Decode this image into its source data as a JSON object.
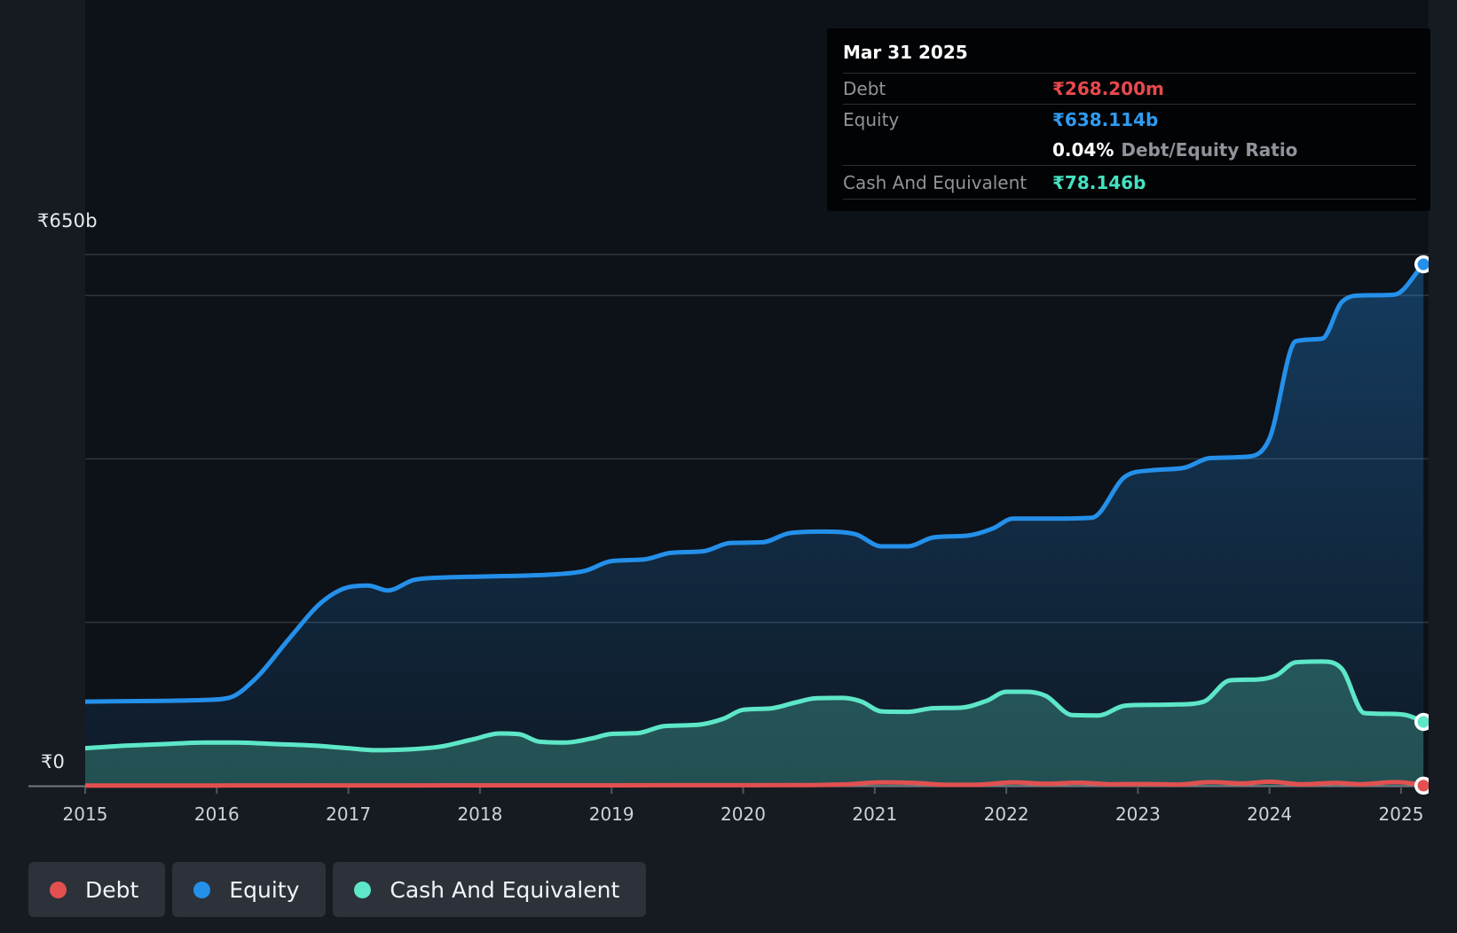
{
  "tooltip": {
    "date": "Mar 31 2025",
    "debt_label": "Debt",
    "debt_value": "₹268.200m",
    "equity_label": "Equity",
    "equity_value": "₹638.114b",
    "ratio_value": "0.04%",
    "ratio_label": "Debt/Equity Ratio",
    "cash_label": "Cash And Equivalent",
    "cash_value": "₹78.146b"
  },
  "y_axis": {
    "top_label": "₹650b",
    "zero_label": "₹0"
  },
  "x_axis": {
    "years": [
      "2015",
      "2016",
      "2017",
      "2018",
      "2019",
      "2020",
      "2021",
      "2022",
      "2023",
      "2024",
      "2025"
    ]
  },
  "legend": {
    "items": [
      {
        "label": "Debt",
        "color": "#e25050"
      },
      {
        "label": "Equity",
        "color": "#2490ea"
      },
      {
        "label": "Cash And Equivalent",
        "color": "#5de7c8"
      }
    ]
  },
  "colors": {
    "debt": "#e25050",
    "equity": "#2490ea",
    "cash": "#5de7c8",
    "debt_text": "#e8494d",
    "equity_text": "#2f9bf1",
    "cash_text": "#45e1c0",
    "gridline": "#31363d",
    "axis": "#73787e",
    "tick": "#51565c",
    "plot_bg": "#0d1118",
    "page_bg": "#161b22",
    "year_label": "#ced2d6"
  },
  "chart_data": {
    "type": "area",
    "title": "Debt to Equity history",
    "x_unit": "year",
    "x_range": [
      2015,
      2025.25
    ],
    "ylim": [
      0,
      650
    ],
    "y_gridlines_b": [
      650,
      600,
      400,
      200
    ],
    "y_axis_labels": [
      "₹650b",
      "₹0"
    ],
    "legend_position": "bottom-left",
    "series": [
      {
        "name": "Equity",
        "unit": "billions INR",
        "end_value": 638.114,
        "points": [
          [
            2015.0,
            103
          ],
          [
            2015.3,
            103.5
          ],
          [
            2015.6,
            104
          ],
          [
            2015.9,
            105
          ],
          [
            2016.1,
            108
          ],
          [
            2016.3,
            132
          ],
          [
            2016.55,
            180
          ],
          [
            2016.8,
            225
          ],
          [
            2017.0,
            243
          ],
          [
            2017.15,
            245
          ],
          [
            2017.3,
            239
          ],
          [
            2017.5,
            252
          ],
          [
            2017.75,
            255
          ],
          [
            2018.0,
            256
          ],
          [
            2018.3,
            257
          ],
          [
            2018.6,
            259
          ],
          [
            2018.8,
            263
          ],
          [
            2019.0,
            275
          ],
          [
            2019.25,
            277
          ],
          [
            2019.45,
            285
          ],
          [
            2019.7,
            287
          ],
          [
            2019.9,
            297
          ],
          [
            2020.15,
            298
          ],
          [
            2020.35,
            309
          ],
          [
            2020.6,
            311
          ],
          [
            2020.85,
            308
          ],
          [
            2021.05,
            293
          ],
          [
            2021.25,
            293
          ],
          [
            2021.45,
            304
          ],
          [
            2021.7,
            306
          ],
          [
            2021.9,
            315
          ],
          [
            2022.05,
            327
          ],
          [
            2022.35,
            327
          ],
          [
            2022.65,
            328
          ],
          [
            2022.9,
            378
          ],
          [
            2023.1,
            386
          ],
          [
            2023.35,
            389
          ],
          [
            2023.55,
            401
          ],
          [
            2023.85,
            403
          ],
          [
            2024.0,
            425
          ],
          [
            2024.2,
            544
          ],
          [
            2024.4,
            547
          ],
          [
            2024.55,
            592
          ],
          [
            2024.7,
            600
          ],
          [
            2024.95,
            601
          ],
          [
            2025.17,
            638.114
          ]
        ]
      },
      {
        "name": "Cash And Equivalent",
        "unit": "billions INR",
        "end_value": 78.146,
        "points": [
          [
            2015.0,
            46
          ],
          [
            2015.3,
            49
          ],
          [
            2015.6,
            51
          ],
          [
            2015.9,
            53
          ],
          [
            2016.15,
            53
          ],
          [
            2016.45,
            51
          ],
          [
            2016.75,
            49
          ],
          [
            2017.0,
            46
          ],
          [
            2017.2,
            43.5
          ],
          [
            2017.45,
            44.5
          ],
          [
            2017.7,
            48
          ],
          [
            2017.95,
            57
          ],
          [
            2018.15,
            64
          ],
          [
            2018.3,
            63
          ],
          [
            2018.45,
            54
          ],
          [
            2018.65,
            53
          ],
          [
            2018.85,
            58
          ],
          [
            2019.0,
            63.5
          ],
          [
            2019.2,
            64.5
          ],
          [
            2019.4,
            73
          ],
          [
            2019.65,
            74.5
          ],
          [
            2019.85,
            82
          ],
          [
            2020.0,
            93
          ],
          [
            2020.2,
            94.5
          ],
          [
            2020.4,
            102
          ],
          [
            2020.55,
            107
          ],
          [
            2020.75,
            107.5
          ],
          [
            2020.9,
            103
          ],
          [
            2021.05,
            91
          ],
          [
            2021.25,
            90.5
          ],
          [
            2021.45,
            95
          ],
          [
            2021.65,
            95.5
          ],
          [
            2021.85,
            104
          ],
          [
            2022.0,
            115
          ],
          [
            2022.15,
            115
          ],
          [
            2022.3,
            110
          ],
          [
            2022.5,
            86.5
          ],
          [
            2022.7,
            86
          ],
          [
            2022.9,
            98
          ],
          [
            2023.1,
            99
          ],
          [
            2023.3,
            99.5
          ],
          [
            2023.5,
            103
          ],
          [
            2023.7,
            129
          ],
          [
            2023.9,
            130
          ],
          [
            2024.05,
            135
          ],
          [
            2024.2,
            151
          ],
          [
            2024.4,
            152
          ],
          [
            2024.55,
            143
          ],
          [
            2024.72,
            89
          ],
          [
            2024.9,
            88
          ],
          [
            2025.05,
            86
          ],
          [
            2025.17,
            78.146
          ]
        ]
      },
      {
        "name": "Debt",
        "unit": "billions INR",
        "end_value": 0.2682,
        "points": [
          [
            2015.0,
            0.3
          ],
          [
            2015.5,
            0.3
          ],
          [
            2016.0,
            0.35
          ],
          [
            2016.5,
            0.4
          ],
          [
            2017.0,
            0.4
          ],
          [
            2017.5,
            0.45
          ],
          [
            2018.0,
            0.5
          ],
          [
            2018.5,
            0.5
          ],
          [
            2019.0,
            0.55
          ],
          [
            2019.5,
            0.6
          ],
          [
            2020.0,
            0.7
          ],
          [
            2020.5,
            0.9
          ],
          [
            2020.8,
            2
          ],
          [
            2021.05,
            4.2
          ],
          [
            2021.3,
            3.5
          ],
          [
            2021.55,
            1.2
          ],
          [
            2021.8,
            1.5
          ],
          [
            2022.05,
            4.2
          ],
          [
            2022.3,
            2.5
          ],
          [
            2022.55,
            3.8
          ],
          [
            2022.8,
            1.8
          ],
          [
            2023.05,
            2.2
          ],
          [
            2023.3,
            1.5
          ],
          [
            2023.55,
            4.5
          ],
          [
            2023.8,
            2.8
          ],
          [
            2024.0,
            5
          ],
          [
            2024.25,
            1.8
          ],
          [
            2024.5,
            3.6
          ],
          [
            2024.7,
            2
          ],
          [
            2024.95,
            4.4
          ],
          [
            2025.1,
            2.6
          ],
          [
            2025.17,
            0.27
          ]
        ]
      }
    ]
  }
}
